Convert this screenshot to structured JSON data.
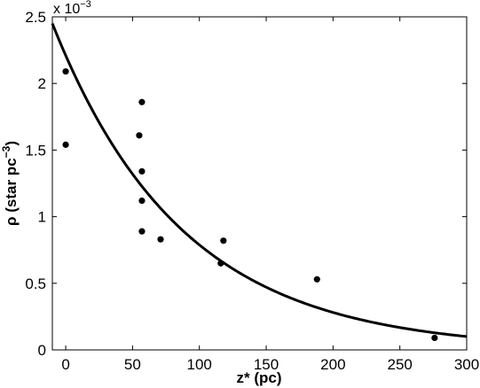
{
  "chart_data": {
    "type": "scatter",
    "xlabel": "z* (pc)",
    "ylabel_main": "ρ (star pc",
    "ylabel_sup": "−3",
    "ylabel_close": ")",
    "y_exponent_base": "x 10",
    "y_exponent_power": "−3",
    "xlim": [
      -10,
      300
    ],
    "ylim": [
      0,
      2.5
    ],
    "x_ticks": [
      0,
      50,
      100,
      150,
      200,
      250,
      300
    ],
    "y_ticks": [
      0,
      0.5,
      1,
      1.5,
      2,
      2.5
    ],
    "x_tick_labels": [
      "0",
      "50",
      "100",
      "150",
      "200",
      "250",
      "300"
    ],
    "y_tick_labels": [
      "0",
      "0.5",
      "1",
      "1.5",
      "2",
      "2.5"
    ],
    "grid": false,
    "series": [
      {
        "kind": "points",
        "x": [
          0,
          0,
          55,
          57,
          57,
          57,
          57,
          71,
          116,
          118,
          188,
          276
        ],
        "y": [
          2.09,
          1.54,
          1.61,
          1.86,
          1.34,
          1.12,
          0.89,
          0.83,
          0.65,
          0.82,
          0.53,
          0.09
        ]
      },
      {
        "kind": "fit",
        "form": "exponential",
        "amplitude": 2.21,
        "scale_height_pc": 97,
        "x_range": [
          -10,
          300
        ]
      }
    ]
  }
}
